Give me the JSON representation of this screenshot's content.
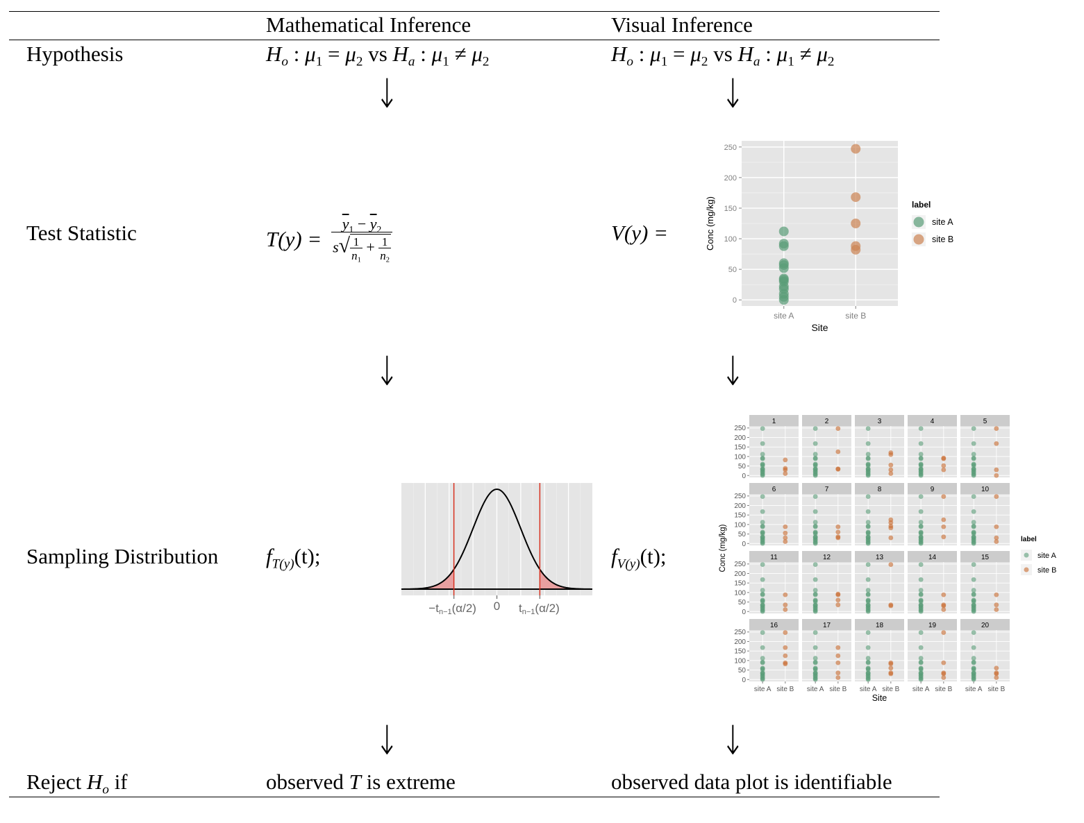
{
  "table": {
    "headers": [
      "Mathematical Inference",
      "Visual Inference"
    ],
    "rows": {
      "hypothesis": "Hypothesis",
      "test_statistic": "Test Statistic",
      "sampling_distribution": "Sampling Distribution",
      "reject_prefix": "Reject",
      "reject_suffix": "if"
    },
    "math_hyp": {
      "h0": "H",
      "o": "o",
      "mu": "μ",
      "vs": "vs",
      "ha": "H",
      "a": "a"
    },
    "test_stat_math": {
      "lhs": "T(y) =",
      "num1": "y",
      "num2": "y",
      "den_s": "s",
      "den_n": "n"
    },
    "test_stat_visual": {
      "lhs": "V(y) ="
    },
    "sampling_math": {
      "f": "f",
      "sub": "T(y)",
      "arg": "(t);"
    },
    "sampling_visual": {
      "f": "f",
      "sub": "V(y)",
      "arg": "(t);"
    },
    "reject_math": {
      "pre": "observed",
      "var": "T",
      "post": "is extreme"
    },
    "reject_visual": {
      "text": "observed data plot is identifiable"
    },
    "arrow": "↓"
  },
  "chart_data": [
    {
      "type": "scatter",
      "title": "",
      "xlabel": "Site",
      "ylabel": "Conc (mg/kg)",
      "categories": [
        "site A",
        "site B"
      ],
      "yticks": [
        0,
        50,
        100,
        150,
        200,
        250
      ],
      "ylim": [
        -10,
        260
      ],
      "legend": {
        "title": "label",
        "placement": "right"
      },
      "series": [
        {
          "name": "site A",
          "color": "#5a9c78",
          "values": [
            0,
            5,
            10,
            18,
            22,
            30,
            33,
            35,
            52,
            57,
            60,
            88,
            92,
            112
          ]
        },
        {
          "name": "site B",
          "color": "#cc8352",
          "values": [
            82,
            88,
            125,
            168,
            247
          ]
        }
      ]
    },
    {
      "type": "line",
      "title": "",
      "description_ticks": [
        "−t",
        "n−1",
        "(α/2)",
        "0",
        "t",
        "n−1",
        "(α/2)"
      ],
      "curve": "normal density",
      "critical_lines_color": "#d7301f",
      "tail_fill": "#e8a0a0",
      "xlim": [
        -4,
        4
      ],
      "critical_value": 1.8
    },
    {
      "type": "scatter",
      "xlabel": "Site",
      "ylabel": "Conc (mg/kg)",
      "categories": [
        "site A",
        "site B"
      ],
      "yticks": [
        0,
        50,
        100,
        150,
        200,
        250
      ],
      "ylim": [
        -10,
        260
      ],
      "legend": {
        "title": "label",
        "placement": "right",
        "entries": [
          "site A",
          "site B"
        ]
      },
      "panels": [
        "1",
        "2",
        "3",
        "4",
        "5",
        "6",
        "7",
        "8",
        "9",
        "10",
        "11",
        "12",
        "13",
        "14",
        "15",
        "16",
        "17",
        "18",
        "19",
        "20"
      ],
      "panel_site_a": [
        0,
        5,
        10,
        18,
        22,
        30,
        33,
        35,
        52,
        57,
        60,
        88,
        92,
        112,
        168,
        247
      ],
      "panel_site_b": [
        [
          10,
          30,
          38,
          82
        ],
        [
          33,
          35,
          125,
          247
        ],
        [
          10,
          30,
          55,
          110,
          120
        ],
        [
          30,
          52,
          88,
          92
        ],
        [
          0,
          30,
          168,
          247
        ],
        [
          10,
          30,
          55,
          88
        ],
        [
          30,
          35,
          60,
          88
        ],
        [
          30,
          82,
          92,
          110,
          125
        ],
        [
          35,
          88,
          125,
          247
        ],
        [
          10,
          30,
          88,
          247
        ],
        [
          10,
          35,
          88
        ],
        [
          35,
          60,
          88,
          92
        ],
        [
          30,
          35,
          247
        ],
        [
          10,
          30,
          35,
          88
        ],
        [
          10,
          35,
          88
        ],
        [
          82,
          88,
          125,
          168,
          247
        ],
        [
          10,
          35,
          88,
          125,
          168
        ],
        [
          30,
          35,
          60,
          82,
          88
        ],
        [
          10,
          30,
          35,
          88,
          247
        ],
        [
          10,
          30,
          35,
          60
        ]
      ]
    }
  ]
}
